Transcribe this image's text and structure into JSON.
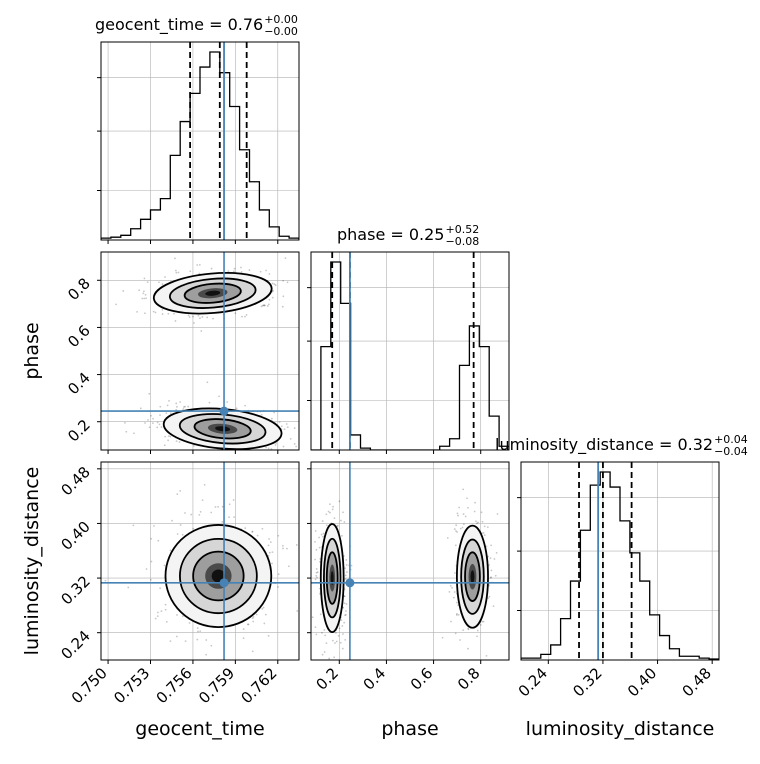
{
  "colors": {
    "truth": "#4682b4",
    "line": "#000000",
    "grid": "#b0b0b0",
    "scatter": "#000000"
  },
  "chart_data": {
    "type": "corner",
    "parameters": [
      "geocent_time",
      "phase",
      "luminosity_distance"
    ],
    "truths": {
      "geocent_time": 0.7582,
      "phase": 0.245,
      "luminosity_distance": 0.313
    },
    "titles": {
      "geocent_time": {
        "text": "geocent_time = 0.76",
        "sup": "+0.00",
        "sub": "−0.00"
      },
      "phase": {
        "text": "phase = 0.25",
        "sup": "+0.52",
        "sub": "−0.08"
      },
      "luminosity_distance": {
        "text": "luminosity_distance = 0.32",
        "sup": "+0.04",
        "sub": "−0.04"
      }
    },
    "axes": {
      "geocent_time": {
        "label": "geocent_time",
        "range": [
          0.7495,
          0.7635
        ],
        "ticks": [
          0.75,
          0.753,
          0.756,
          0.759,
          0.762
        ],
        "tick_labels": [
          "0.750",
          "0.753",
          "0.756",
          "0.759",
          "0.762"
        ]
      },
      "phase": {
        "label": "phase",
        "range": [
          0.08,
          0.92
        ],
        "ticks": [
          0.2,
          0.4,
          0.6,
          0.8
        ],
        "tick_labels": [
          "0.2",
          "0.4",
          "0.6",
          "0.8"
        ]
      },
      "luminosity_distance": {
        "label": "luminosity_distance",
        "range": [
          0.2,
          0.49
        ],
        "ticks": [
          0.24,
          0.32,
          0.4,
          0.48
        ],
        "tick_labels": [
          "0.24",
          "0.32",
          "0.40",
          "0.48"
        ]
      }
    },
    "histograms": {
      "geocent_time": {
        "bin_edges": [
          0.7495,
          0.7502,
          0.7509,
          0.7516,
          0.7523,
          0.753,
          0.7537,
          0.7544,
          0.7551,
          0.7558,
          0.7565,
          0.7572,
          0.7579,
          0.7586,
          0.7593,
          0.76,
          0.7607,
          0.7614,
          0.7621,
          0.7628,
          0.7635
        ],
        "counts": [
          0.01,
          0.015,
          0.025,
          0.06,
          0.11,
          0.16,
          0.22,
          0.45,
          0.63,
          0.78,
          0.92,
          1.0,
          0.89,
          0.71,
          0.48,
          0.31,
          0.16,
          0.07,
          0.02,
          0.01
        ],
        "quantiles": [
          0.7558,
          0.7579,
          0.7598
        ]
      },
      "phase": {
        "bin_edges": [
          0.08,
          0.122,
          0.164,
          0.206,
          0.248,
          0.29,
          0.332,
          0.374,
          0.416,
          0.458,
          0.5,
          0.542,
          0.584,
          0.626,
          0.668,
          0.71,
          0.752,
          0.794,
          0.836,
          0.878,
          0.92
        ],
        "counts": [
          0.0,
          0.55,
          1.0,
          0.78,
          0.08,
          0.01,
          0.0,
          0.0,
          0.0,
          0.0,
          0.0,
          0.0,
          0.0,
          0.02,
          0.06,
          0.45,
          0.66,
          0.55,
          0.18,
          0.02
        ],
        "quantiles": [
          0.17,
          0.245,
          0.77
        ]
      },
      "luminosity_distance": {
        "bin_edges": [
          0.2,
          0.2145,
          0.229,
          0.2435,
          0.258,
          0.2725,
          0.287,
          0.3015,
          0.316,
          0.3305,
          0.345,
          0.3595,
          0.374,
          0.3885,
          0.403,
          0.4175,
          0.432,
          0.4465,
          0.461,
          0.4755,
          0.49
        ],
        "counts": [
          0.01,
          0.01,
          0.03,
          0.08,
          0.22,
          0.42,
          0.69,
          0.93,
          1.0,
          0.92,
          0.74,
          0.57,
          0.42,
          0.24,
          0.13,
          0.06,
          0.02,
          0.02,
          0.01,
          0.005
        ],
        "quantiles": [
          0.285,
          0.32,
          0.362
        ]
      }
    },
    "pairs": [
      {
        "x": "geocent_time",
        "y": "phase",
        "blobs": [
          {
            "cx": 0.7574,
            "cy": 0.745,
            "sx": 0.0019,
            "sy": 0.038,
            "tilt": -0.25
          },
          {
            "cx": 0.7581,
            "cy": 0.17,
            "sx": 0.0019,
            "sy": 0.038,
            "tilt": 0.25
          }
        ]
      },
      {
        "x": "geocent_time",
        "y": "luminosity_distance",
        "blobs": [
          {
            "cx": 0.7578,
            "cy": 0.323,
            "sx": 0.0017,
            "sy": 0.034,
            "tilt": 0.0
          }
        ]
      },
      {
        "x": "phase",
        "y": "luminosity_distance",
        "blobs": [
          {
            "cx": 0.17,
            "cy": 0.32,
            "sx": 0.022,
            "sy": 0.036,
            "tilt": 0.0
          },
          {
            "cx": 0.765,
            "cy": 0.322,
            "sx": 0.03,
            "sy": 0.034,
            "tilt": 0.0
          }
        ]
      }
    ]
  }
}
